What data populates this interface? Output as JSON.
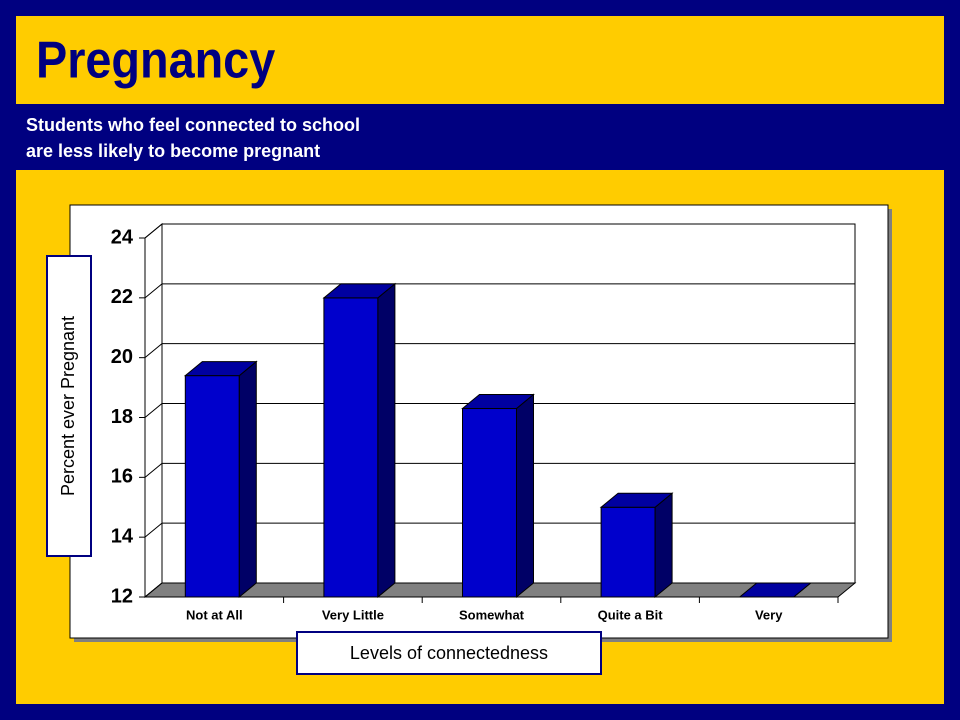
{
  "chart_data": {
    "type": "bar3d",
    "title": "Pregnancy",
    "subtitle": [
      "Students who feel connected to school",
      "are less likely to become pregnant"
    ],
    "y_label": "Percent ever Pregnant",
    "x_label": "Levels of connectedness",
    "categories": [
      "Not at All",
      "Very Little",
      "Somewhat",
      "Quite a Bit",
      "Very"
    ],
    "values": [
      19.4,
      22,
      18.3,
      15,
      12
    ],
    "color": "#0000cc",
    "ylim": [
      12,
      24
    ],
    "yticks": [
      12,
      14,
      16,
      18,
      20,
      22,
      24
    ],
    "grid": true
  }
}
